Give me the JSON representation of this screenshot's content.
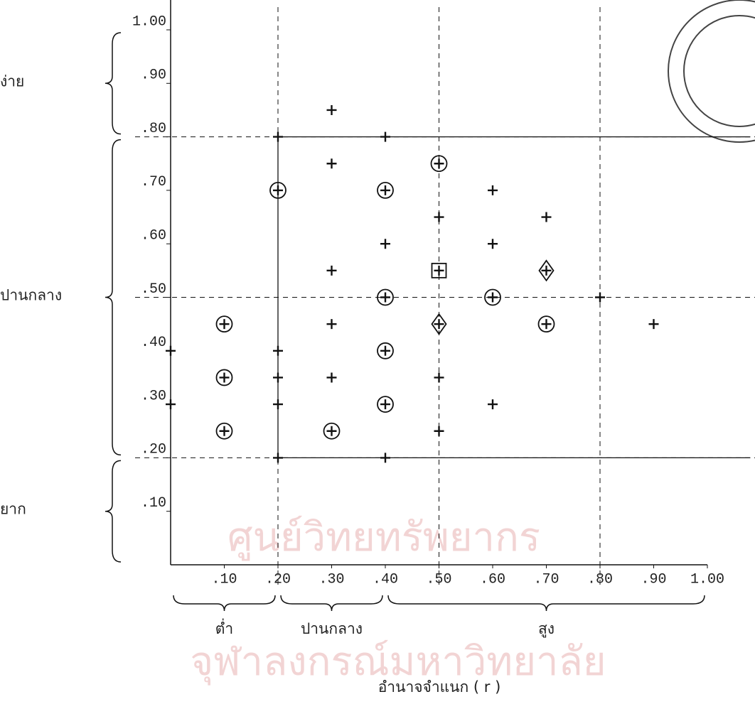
{
  "chart_data": {
    "type": "scatter",
    "x_title": "อำนาจจำแนก ( r )",
    "watermark": [
      "ศูนย์วิทยทรัพยากร",
      "จุฬาลงกรณ์มหาวิทยาลัย"
    ],
    "xlim": [
      0,
      1.0
    ],
    "ylim": [
      0,
      1.0
    ],
    "xticks": [
      {
        "value": 0.1,
        "label": ".10"
      },
      {
        "value": 0.2,
        "label": ".20"
      },
      {
        "value": 0.3,
        "label": ".30"
      },
      {
        "value": 0.4,
        "label": ".40"
      },
      {
        "value": 0.5,
        "label": ".50"
      },
      {
        "value": 0.6,
        "label": ".60"
      },
      {
        "value": 0.7,
        "label": ".70"
      },
      {
        "value": 0.8,
        "label": ".80"
      },
      {
        "value": 0.9,
        "label": ".90"
      },
      {
        "value": 1.0,
        "label": "1.00"
      }
    ],
    "yticks": [
      {
        "value": 0.1,
        "label": ".10"
      },
      {
        "value": 0.2,
        "label": ".20"
      },
      {
        "value": 0.3,
        "label": ".30"
      },
      {
        "value": 0.4,
        "label": ".40"
      },
      {
        "value": 0.5,
        "label": ".50"
      },
      {
        "value": 0.6,
        "label": ".60"
      },
      {
        "value": 0.7,
        "label": ".70"
      },
      {
        "value": 0.8,
        "label": ".80"
      },
      {
        "value": 0.9,
        "label": ".90"
      },
      {
        "value": 1.0,
        "label": "1.00"
      }
    ],
    "dashed_hlines": [
      0.2,
      0.5,
      0.8
    ],
    "dashed_vlines": [
      0.2,
      0.5,
      0.8
    ],
    "solid_lines": [
      {
        "x": [
          0.2,
          0.2
        ],
        "y": [
          0.2,
          0.8
        ]
      },
      {
        "x": [
          0.2,
          1.08
        ],
        "y": [
          0.8,
          0.8
        ]
      },
      {
        "x": [
          0.2,
          1.08
        ],
        "y": [
          0.2,
          0.2
        ]
      }
    ],
    "y_groups": [
      {
        "label": "ง่าย",
        "range": [
          0.8,
          1.0
        ]
      },
      {
        "label": "ปานกลาง",
        "range": [
          0.2,
          0.8
        ]
      },
      {
        "label": "ยาก",
        "range": [
          0,
          0.2
        ]
      }
    ],
    "x_groups": [
      {
        "label": "ต่ำ",
        "range": [
          0,
          0.2
        ]
      },
      {
        "label": "ปานกลาง",
        "range": [
          0.2,
          0.4
        ]
      },
      {
        "label": "สูง",
        "range": [
          0.4,
          1.0
        ]
      }
    ],
    "color": "#111111",
    "series": [
      {
        "marker": "plus",
        "x": [
          0.3,
          0.2,
          0.4,
          0.3,
          0.6,
          0.7,
          0.5,
          0.4,
          0.6,
          0.3,
          0.8,
          0.3,
          0.9,
          0.0,
          0.2,
          0.2,
          0.3,
          0.5,
          0.0,
          0.2,
          0.6,
          0.5,
          0.2,
          0.4
        ],
        "y": [
          0.85,
          0.8,
          0.8,
          0.75,
          0.7,
          0.65,
          0.65,
          0.6,
          0.6,
          0.55,
          0.5,
          0.45,
          0.45,
          0.4,
          0.4,
          0.35,
          0.35,
          0.35,
          0.3,
          0.3,
          0.3,
          0.25,
          0.2,
          0.2
        ]
      },
      {
        "marker": "circle",
        "x": [
          0.2,
          0.5,
          0.4,
          0.4,
          0.6,
          0.1,
          0.7,
          0.4,
          0.1,
          0.4,
          0.1,
          0.3
        ],
        "y": [
          0.7,
          0.75,
          0.7,
          0.5,
          0.5,
          0.45,
          0.45,
          0.4,
          0.35,
          0.3,
          0.25,
          0.25
        ]
      },
      {
        "marker": "square",
        "x": [
          0.5
        ],
        "y": [
          0.55
        ]
      },
      {
        "marker": "diamond",
        "x": [
          0.7,
          0.5
        ],
        "y": [
          0.55,
          0.45
        ]
      }
    ]
  }
}
